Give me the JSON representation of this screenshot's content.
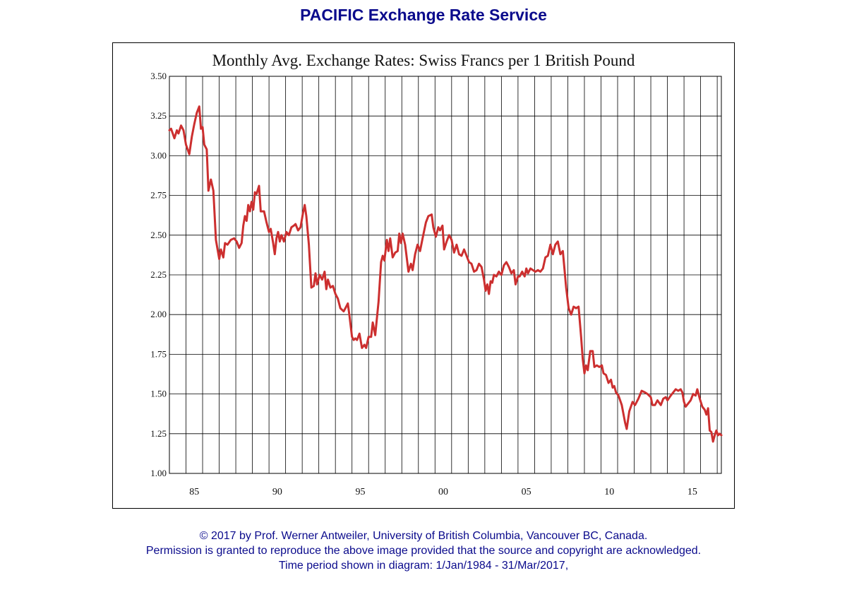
{
  "header": {
    "title": "PACIFIC Exchange Rate Service"
  },
  "footer": {
    "copyright": "© 2017 by Prof. Werner Antweiler, University of British Columbia, Vancouver BC, Canada.",
    "permission": "Permission is granted to reproduce the above image provided that the source and copyright are acknowledged.",
    "period": "Time period shown in diagram: 1/Jan/1984 - 31/Mar/2017,"
  },
  "colors": {
    "brand": "#0a0a8c",
    "series": "#cc2f2f",
    "grid": "#000000"
  },
  "chart_data": {
    "type": "line",
    "title": "Monthly Avg. Exchange Rates: Swiss Francs per 1 British Pound",
    "xlabel": "",
    "ylabel": "",
    "xlim": [
      1984.0,
      2017.25
    ],
    "ylim": [
      1.0,
      3.5
    ],
    "yticks": [
      "1.00",
      "1.25",
      "1.50",
      "1.75",
      "2.00",
      "2.25",
      "2.50",
      "2.75",
      "3.00",
      "3.25",
      "3.50"
    ],
    "xtick_labels": [
      {
        "year": 1985,
        "label": "85"
      },
      {
        "year": 1990,
        "label": "90"
      },
      {
        "year": 1995,
        "label": "95"
      },
      {
        "year": 2000,
        "label": "00"
      },
      {
        "year": 2005,
        "label": "05"
      },
      {
        "year": 2010,
        "label": "10"
      },
      {
        "year": 2015,
        "label": "15"
      }
    ],
    "grid": true,
    "series": [
      {
        "points": [
          [
            1984.0,
            3.16
          ],
          [
            1984.1,
            3.17
          ],
          [
            1984.3,
            3.11
          ],
          [
            1984.45,
            3.16
          ],
          [
            1984.55,
            3.14
          ],
          [
            1984.7,
            3.19
          ],
          [
            1984.85,
            3.16
          ],
          [
            1985.0,
            3.07
          ],
          [
            1985.2,
            3.01
          ],
          [
            1985.35,
            3.12
          ],
          [
            1985.5,
            3.2
          ],
          [
            1985.65,
            3.27
          ],
          [
            1985.8,
            3.31
          ],
          [
            1985.9,
            3.17
          ],
          [
            1986.0,
            3.18
          ],
          [
            1986.1,
            3.07
          ],
          [
            1986.25,
            3.04
          ],
          [
            1986.35,
            2.78
          ],
          [
            1986.5,
            2.85
          ],
          [
            1986.65,
            2.78
          ],
          [
            1986.8,
            2.47
          ],
          [
            1987.0,
            2.35
          ],
          [
            1987.1,
            2.41
          ],
          [
            1987.25,
            2.36
          ],
          [
            1987.35,
            2.45
          ],
          [
            1987.5,
            2.44
          ],
          [
            1987.7,
            2.47
          ],
          [
            1987.9,
            2.48
          ],
          [
            1988.05,
            2.46
          ],
          [
            1988.2,
            2.42
          ],
          [
            1988.35,
            2.45
          ],
          [
            1988.45,
            2.56
          ],
          [
            1988.55,
            2.62
          ],
          [
            1988.65,
            2.59
          ],
          [
            1988.75,
            2.69
          ],
          [
            1988.85,
            2.65
          ],
          [
            1988.95,
            2.71
          ],
          [
            1989.05,
            2.66
          ],
          [
            1989.15,
            2.77
          ],
          [
            1989.25,
            2.76
          ],
          [
            1989.4,
            2.81
          ],
          [
            1989.5,
            2.65
          ],
          [
            1989.7,
            2.65
          ],
          [
            1989.85,
            2.58
          ],
          [
            1990.0,
            2.52
          ],
          [
            1990.1,
            2.54
          ],
          [
            1990.25,
            2.45
          ],
          [
            1990.35,
            2.38
          ],
          [
            1990.45,
            2.48
          ],
          [
            1990.55,
            2.52
          ],
          [
            1990.65,
            2.46
          ],
          [
            1990.75,
            2.5
          ],
          [
            1990.9,
            2.46
          ],
          [
            1991.05,
            2.52
          ],
          [
            1991.2,
            2.5
          ],
          [
            1991.35,
            2.55
          ],
          [
            1991.5,
            2.56
          ],
          [
            1991.6,
            2.57
          ],
          [
            1991.75,
            2.53
          ],
          [
            1991.9,
            2.55
          ],
          [
            1992.05,
            2.64
          ],
          [
            1992.15,
            2.69
          ],
          [
            1992.25,
            2.62
          ],
          [
            1992.4,
            2.44
          ],
          [
            1992.55,
            2.17
          ],
          [
            1992.7,
            2.18
          ],
          [
            1992.8,
            2.26
          ],
          [
            1992.9,
            2.19
          ],
          [
            1993.05,
            2.25
          ],
          [
            1993.2,
            2.22
          ],
          [
            1993.35,
            2.27
          ],
          [
            1993.45,
            2.16
          ],
          [
            1993.55,
            2.22
          ],
          [
            1993.7,
            2.17
          ],
          [
            1993.85,
            2.18
          ],
          [
            1994.0,
            2.13
          ],
          [
            1994.15,
            2.1
          ],
          [
            1994.3,
            2.04
          ],
          [
            1994.5,
            2.02
          ],
          [
            1994.65,
            2.05
          ],
          [
            1994.75,
            2.07
          ],
          [
            1994.85,
            1.99
          ],
          [
            1995.0,
            1.86
          ],
          [
            1995.1,
            1.84
          ],
          [
            1995.2,
            1.85
          ],
          [
            1995.3,
            1.84
          ],
          [
            1995.45,
            1.88
          ],
          [
            1995.6,
            1.79
          ],
          [
            1995.75,
            1.81
          ],
          [
            1995.85,
            1.79
          ],
          [
            1996.0,
            1.86
          ],
          [
            1996.15,
            1.86
          ],
          [
            1996.25,
            1.95
          ],
          [
            1996.4,
            1.87
          ],
          [
            1996.6,
            2.08
          ],
          [
            1996.75,
            2.33
          ],
          [
            1996.85,
            2.37
          ],
          [
            1996.95,
            2.34
          ],
          [
            1997.1,
            2.47
          ],
          [
            1997.2,
            2.4
          ],
          [
            1997.3,
            2.48
          ],
          [
            1997.45,
            2.36
          ],
          [
            1997.6,
            2.39
          ],
          [
            1997.75,
            2.4
          ],
          [
            1997.85,
            2.51
          ],
          [
            1997.95,
            2.45
          ],
          [
            1998.05,
            2.51
          ],
          [
            1998.2,
            2.44
          ],
          [
            1998.4,
            2.27
          ],
          [
            1998.55,
            2.32
          ],
          [
            1998.65,
            2.28
          ],
          [
            1998.8,
            2.38
          ],
          [
            1998.95,
            2.44
          ],
          [
            1999.1,
            2.4
          ],
          [
            1999.25,
            2.48
          ],
          [
            1999.45,
            2.58
          ],
          [
            1999.6,
            2.62
          ],
          [
            1999.8,
            2.63
          ],
          [
            1999.9,
            2.55
          ],
          [
            2000.05,
            2.49
          ],
          [
            2000.2,
            2.55
          ],
          [
            2000.3,
            2.53
          ],
          [
            2000.45,
            2.56
          ],
          [
            2000.55,
            2.41
          ],
          [
            2000.7,
            2.46
          ],
          [
            2000.85,
            2.5
          ],
          [
            2001.0,
            2.47
          ],
          [
            2001.15,
            2.39
          ],
          [
            2001.3,
            2.44
          ],
          [
            2001.45,
            2.38
          ],
          [
            2001.6,
            2.37
          ],
          [
            2001.75,
            2.41
          ],
          [
            2001.9,
            2.37
          ],
          [
            2002.05,
            2.33
          ],
          [
            2002.2,
            2.32
          ],
          [
            2002.35,
            2.27
          ],
          [
            2002.5,
            2.28
          ],
          [
            2002.65,
            2.32
          ],
          [
            2002.8,
            2.3
          ],
          [
            2002.95,
            2.22
          ],
          [
            2003.05,
            2.15
          ],
          [
            2003.15,
            2.19
          ],
          [
            2003.25,
            2.13
          ],
          [
            2003.35,
            2.21
          ],
          [
            2003.45,
            2.2
          ],
          [
            2003.55,
            2.25
          ],
          [
            2003.7,
            2.24
          ],
          [
            2003.85,
            2.27
          ],
          [
            2004.0,
            2.25
          ],
          [
            2004.15,
            2.31
          ],
          [
            2004.3,
            2.33
          ],
          [
            2004.45,
            2.3
          ],
          [
            2004.6,
            2.26
          ],
          [
            2004.75,
            2.28
          ],
          [
            2004.85,
            2.19
          ],
          [
            2005.0,
            2.24
          ],
          [
            2005.1,
            2.24
          ],
          [
            2005.25,
            2.27
          ],
          [
            2005.4,
            2.24
          ],
          [
            2005.5,
            2.29
          ],
          [
            2005.6,
            2.26
          ],
          [
            2005.75,
            2.29
          ],
          [
            2005.9,
            2.28
          ],
          [
            2006.05,
            2.27
          ],
          [
            2006.2,
            2.28
          ],
          [
            2006.35,
            2.27
          ],
          [
            2006.5,
            2.29
          ],
          [
            2006.65,
            2.36
          ],
          [
            2006.8,
            2.37
          ],
          [
            2006.95,
            2.44
          ],
          [
            2007.1,
            2.38
          ],
          [
            2007.25,
            2.44
          ],
          [
            2007.4,
            2.46
          ],
          [
            2007.55,
            2.38
          ],
          [
            2007.7,
            2.4
          ],
          [
            2007.9,
            2.17
          ],
          [
            2008.05,
            2.04
          ],
          [
            2008.2,
            2.0
          ],
          [
            2008.35,
            2.05
          ],
          [
            2008.5,
            2.04
          ],
          [
            2008.65,
            2.05
          ],
          [
            2008.8,
            1.86
          ],
          [
            2008.9,
            1.72
          ],
          [
            2009.0,
            1.63
          ],
          [
            2009.1,
            1.68
          ],
          [
            2009.2,
            1.65
          ],
          [
            2009.35,
            1.77
          ],
          [
            2009.5,
            1.77
          ],
          [
            2009.6,
            1.67
          ],
          [
            2009.75,
            1.68
          ],
          [
            2009.9,
            1.67
          ],
          [
            2010.05,
            1.68
          ],
          [
            2010.15,
            1.63
          ],
          [
            2010.3,
            1.62
          ],
          [
            2010.45,
            1.57
          ],
          [
            2010.6,
            1.59
          ],
          [
            2010.7,
            1.54
          ],
          [
            2010.8,
            1.55
          ],
          [
            2010.9,
            1.51
          ],
          [
            2011.05,
            1.49
          ],
          [
            2011.25,
            1.43
          ],
          [
            2011.45,
            1.32
          ],
          [
            2011.55,
            1.28
          ],
          [
            2011.7,
            1.39
          ],
          [
            2011.9,
            1.45
          ],
          [
            2012.05,
            1.43
          ],
          [
            2012.25,
            1.47
          ],
          [
            2012.45,
            1.52
          ],
          [
            2012.65,
            1.51
          ],
          [
            2012.8,
            1.5
          ],
          [
            2013.0,
            1.48
          ],
          [
            2013.1,
            1.43
          ],
          [
            2013.25,
            1.43
          ],
          [
            2013.4,
            1.46
          ],
          [
            2013.6,
            1.43
          ],
          [
            2013.75,
            1.47
          ],
          [
            2013.9,
            1.48
          ],
          [
            2014.0,
            1.46
          ],
          [
            2014.2,
            1.49
          ],
          [
            2014.35,
            1.51
          ],
          [
            2014.5,
            1.53
          ],
          [
            2014.65,
            1.52
          ],
          [
            2014.8,
            1.53
          ],
          [
            2014.9,
            1.51
          ],
          [
            2015.0,
            1.45
          ],
          [
            2015.1,
            1.42
          ],
          [
            2015.25,
            1.44
          ],
          [
            2015.4,
            1.46
          ],
          [
            2015.55,
            1.5
          ],
          [
            2015.7,
            1.49
          ],
          [
            2015.8,
            1.53
          ],
          [
            2015.95,
            1.47
          ],
          [
            2016.1,
            1.42
          ],
          [
            2016.25,
            1.4
          ],
          [
            2016.35,
            1.37
          ],
          [
            2016.45,
            1.41
          ],
          [
            2016.55,
            1.27
          ],
          [
            2016.65,
            1.26
          ],
          [
            2016.75,
            1.2
          ],
          [
            2016.85,
            1.24
          ],
          [
            2016.95,
            1.27
          ],
          [
            2017.05,
            1.24
          ],
          [
            2017.15,
            1.25
          ],
          [
            2017.25,
            1.24
          ]
        ]
      }
    ]
  }
}
